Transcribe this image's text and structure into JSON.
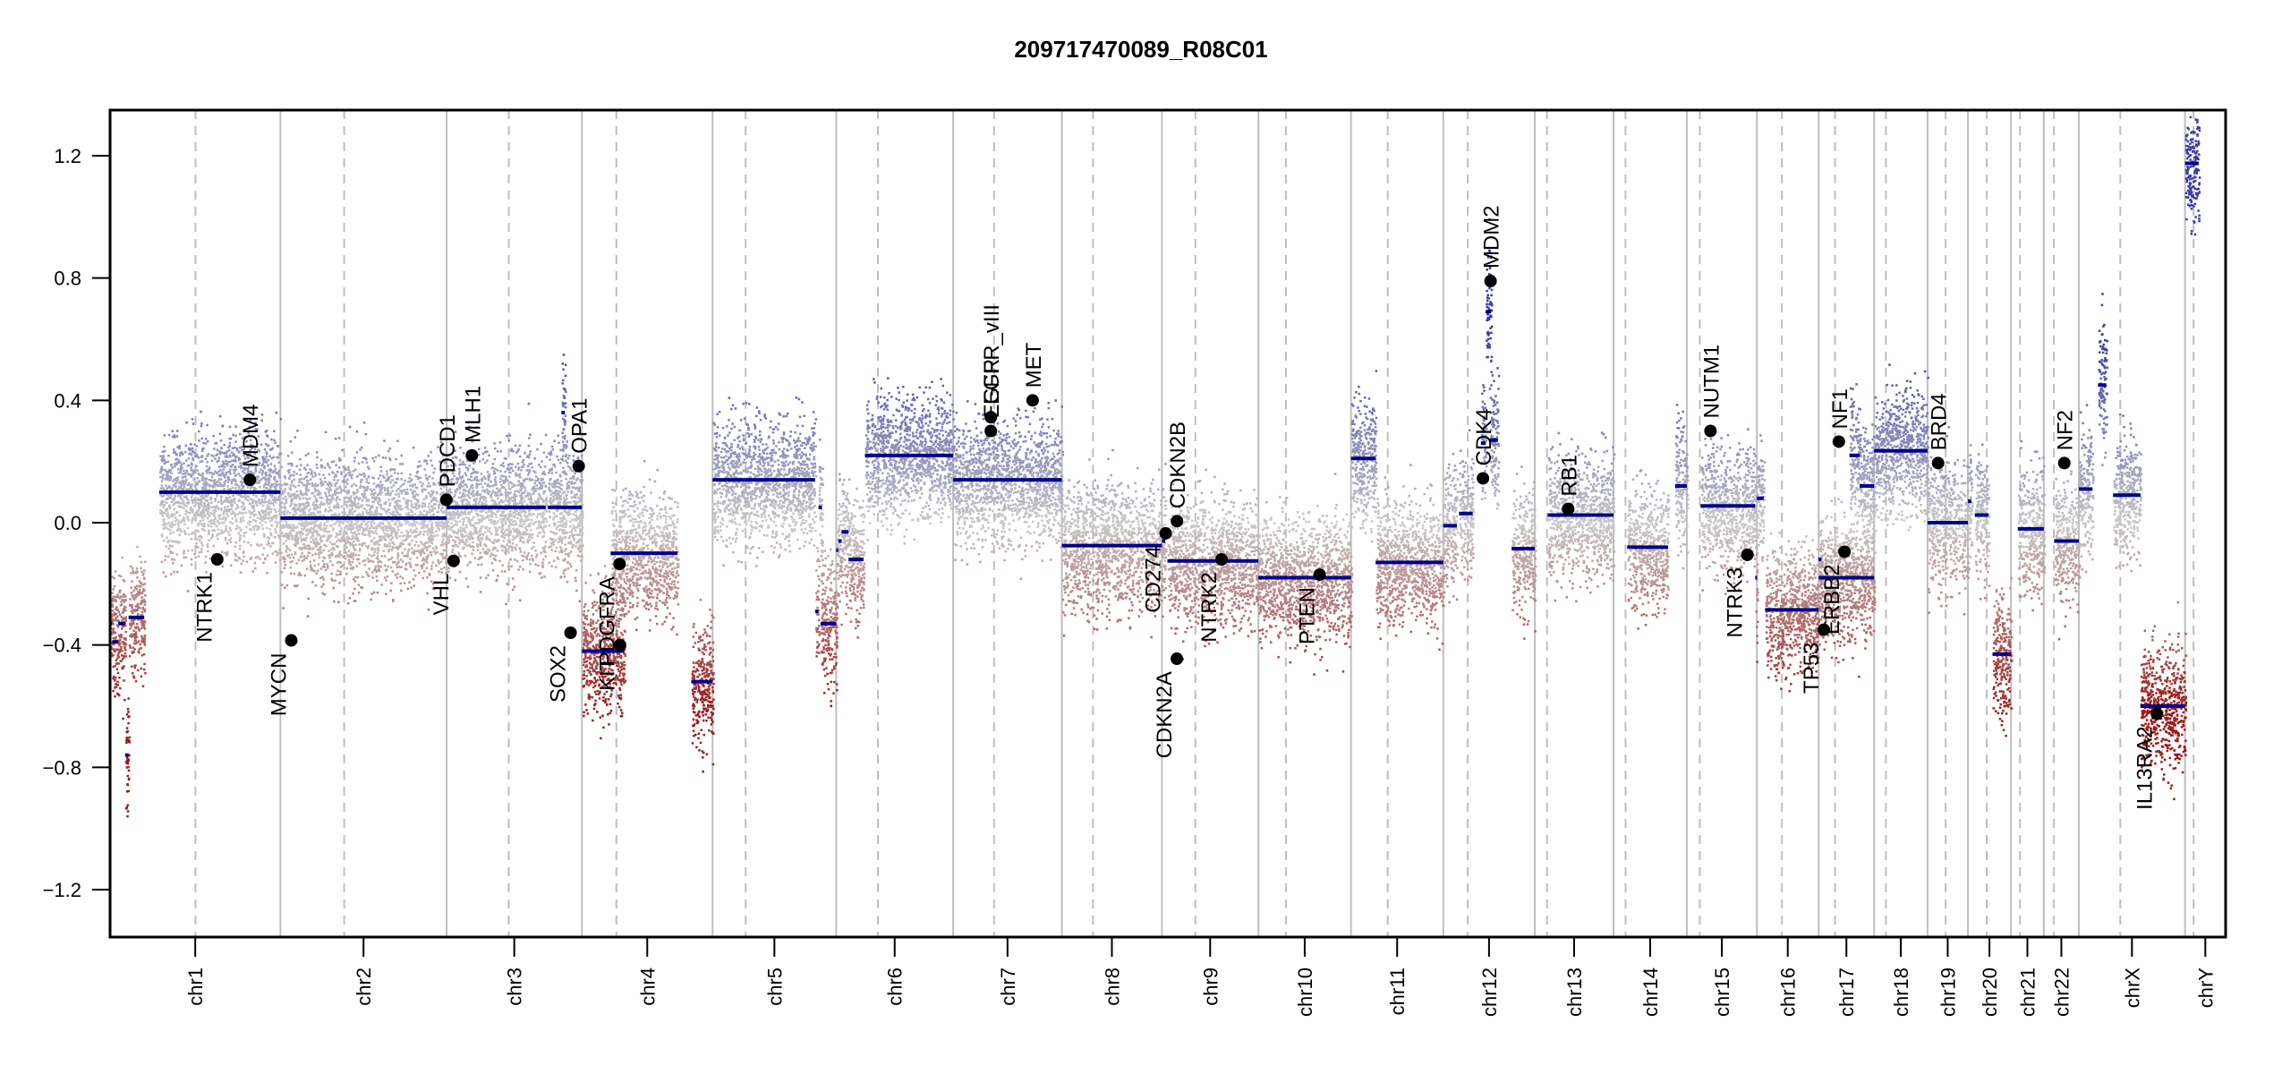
{
  "chart_data": {
    "type": "scatter",
    "title": "209717470089_R08C01",
    "xlabel": "",
    "ylabel": "",
    "ylim": [
      -1.35,
      1.35
    ],
    "yticks": [
      -1.2,
      -0.8,
      -0.4,
      0.0,
      0.4,
      0.8,
      1.2
    ],
    "ytick_labels": [
      "−1.2",
      "−0.8",
      "−0.4",
      "0.0",
      "0.4",
      "0.8",
      "1.2"
    ],
    "grid": false,
    "legend": "none",
    "colors": {
      "gain": "#3b3ba8",
      "loss": "#9b1b1b",
      "neutral": "#c8c8c8",
      "segment": "#00008b",
      "gene": "#000000",
      "boundary": "#bebebe",
      "centromere": "#bebebe"
    },
    "chromosomes": [
      {
        "name": "chr1",
        "length": 249.25,
        "centromere": 125.0
      },
      {
        "name": "chr2",
        "length": 243.2,
        "centromere": 93.3
      },
      {
        "name": "chr3",
        "length": 198.0,
        "centromere": 91.0
      },
      {
        "name": "chr4",
        "length": 191.2,
        "centromere": 50.4
      },
      {
        "name": "chr5",
        "length": 180.9,
        "centromere": 48.4
      },
      {
        "name": "chr6",
        "length": 171.1,
        "centromere": 61.0
      },
      {
        "name": "chr7",
        "length": 159.1,
        "centromere": 59.9
      },
      {
        "name": "chr8",
        "length": 146.4,
        "centromere": 45.6
      },
      {
        "name": "chr9",
        "length": 141.2,
        "centromere": 49.0
      },
      {
        "name": "chr10",
        "length": 135.5,
        "centromere": 40.2
      },
      {
        "name": "chr11",
        "length": 135.0,
        "centromere": 53.7
      },
      {
        "name": "chr12",
        "length": 133.9,
        "centromere": 35.8
      },
      {
        "name": "chr13",
        "length": 115.2,
        "centromere": 17.9
      },
      {
        "name": "chr14",
        "length": 107.3,
        "centromere": 17.6
      },
      {
        "name": "chr15",
        "length": 102.5,
        "centromere": 19.0
      },
      {
        "name": "chr16",
        "length": 90.4,
        "centromere": 36.6
      },
      {
        "name": "chr17",
        "length": 81.2,
        "centromere": 24.0
      },
      {
        "name": "chr18",
        "length": 78.1,
        "centromere": 17.2
      },
      {
        "name": "chr19",
        "length": 59.1,
        "centromere": 26.5
      },
      {
        "name": "chr20",
        "length": 63.0,
        "centromere": 27.5
      },
      {
        "name": "chr21",
        "length": 48.1,
        "centromere": 13.2
      },
      {
        "name": "chr22",
        "length": 51.3,
        "centromere": 14.7
      },
      {
        "name": "chrX",
        "length": 155.3,
        "centromere": 60.6
      },
      {
        "name": "chrY",
        "length": 59.4,
        "centromere": 12.5
      }
    ],
    "segments": [
      {
        "chr": "chr1",
        "start": 0,
        "end": 3,
        "value": -0.33
      },
      {
        "chr": "chr1",
        "start": 3,
        "end": 12,
        "value": -0.39
      },
      {
        "chr": "chr1",
        "start": 12,
        "end": 22,
        "value": -0.33
      },
      {
        "chr": "chr1",
        "start": 22,
        "end": 27,
        "value": -0.76
      },
      {
        "chr": "chr1",
        "start": 27,
        "end": 50,
        "value": -0.31
      },
      {
        "chr": "chr1",
        "start": 72,
        "end": 138,
        "value": 0.1
      },
      {
        "chr": "chr1",
        "start": 138,
        "end": 249.25,
        "value": 0.1
      },
      {
        "chr": "chr2",
        "start": 0,
        "end": 243.2,
        "value": 0.015
      },
      {
        "chr": "chr3",
        "start": 0,
        "end": 145,
        "value": 0.05
      },
      {
        "chr": "chr3",
        "start": 148,
        "end": 198,
        "value": 0.05
      },
      {
        "chr": "chr3",
        "start": 168,
        "end": 173,
        "value": 0.36
      },
      {
        "chr": "chr4",
        "start": 0,
        "end": 28,
        "value": -0.42
      },
      {
        "chr": "chr4",
        "start": 28,
        "end": 62,
        "value": -0.42
      },
      {
        "chr": "chr4",
        "start": 42,
        "end": 140,
        "value": -0.1
      },
      {
        "chr": "chr4",
        "start": 160,
        "end": 191.2,
        "value": -0.52
      },
      {
        "chr": "chr5",
        "start": 0,
        "end": 150,
        "value": 0.14
      },
      {
        "chr": "chr5",
        "start": 155,
        "end": 160,
        "value": 0.05
      },
      {
        "chr": "chr5",
        "start": 150,
        "end": 155,
        "value": -0.29
      },
      {
        "chr": "chr5",
        "start": 158,
        "end": 180.9,
        "value": -0.33
      },
      {
        "chr": "chr6",
        "start": 0,
        "end": 3,
        "value": -0.09
      },
      {
        "chr": "chr6",
        "start": 3,
        "end": 8,
        "value": -0.06
      },
      {
        "chr": "chr6",
        "start": 8,
        "end": 18,
        "value": -0.03
      },
      {
        "chr": "chr6",
        "start": 18,
        "end": 40,
        "value": -0.12
      },
      {
        "chr": "chr6",
        "start": 42,
        "end": 171.1,
        "value": 0.22
      },
      {
        "chr": "chr7",
        "start": 0,
        "end": 159.1,
        "value": 0.14
      },
      {
        "chr": "chr8",
        "start": 0,
        "end": 146.4,
        "value": -0.075
      },
      {
        "chr": "chr9",
        "start": 0,
        "end": 5,
        "value": -0.06
      },
      {
        "chr": "chr9",
        "start": 8,
        "end": 141.2,
        "value": -0.125
      },
      {
        "chr": "chr10",
        "start": 0,
        "end": 135.5,
        "value": -0.18
      },
      {
        "chr": "chr11",
        "start": 0,
        "end": 36,
        "value": 0.21
      },
      {
        "chr": "chr11",
        "start": 36,
        "end": 135.0,
        "value": -0.13
      },
      {
        "chr": "chr12",
        "start": 0,
        "end": 20,
        "value": -0.01
      },
      {
        "chr": "chr12",
        "start": 23,
        "end": 43,
        "value": 0.03
      },
      {
        "chr": "chr12",
        "start": 55,
        "end": 62,
        "value": 0.26
      },
      {
        "chr": "chr12",
        "start": 62,
        "end": 70,
        "value": 0.69
      },
      {
        "chr": "chr12",
        "start": 68,
        "end": 80,
        "value": 0.27
      },
      {
        "chr": "chr12",
        "start": 100,
        "end": 133.9,
        "value": -0.085
      },
      {
        "chr": "chr13",
        "start": 19,
        "end": 115.2,
        "value": 0.025
      },
      {
        "chr": "chr14",
        "start": 20,
        "end": 80,
        "value": -0.08
      },
      {
        "chr": "chr14",
        "start": 90,
        "end": 107.3,
        "value": 0.12
      },
      {
        "chr": "chr15",
        "start": 20,
        "end": 100,
        "value": 0.055
      },
      {
        "chr": "chr15",
        "start": 100,
        "end": 102.5,
        "value": -0.18
      },
      {
        "chr": "chr16",
        "start": 0,
        "end": 10,
        "value": 0.08
      },
      {
        "chr": "chr16",
        "start": 12,
        "end": 90.4,
        "value": -0.285
      },
      {
        "chr": "chr17",
        "start": 0,
        "end": 20,
        "value": -0.18
      },
      {
        "chr": "chr17",
        "start": 20,
        "end": 81.2,
        "value": -0.18
      },
      {
        "chr": "chr17",
        "start": 0,
        "end": 4,
        "value": -0.12
      },
      {
        "chr": "chr17",
        "start": 45,
        "end": 60,
        "value": 0.22
      },
      {
        "chr": "chr17",
        "start": 60,
        "end": 81.2,
        "value": 0.12
      },
      {
        "chr": "chr18",
        "start": 0,
        "end": 78.1,
        "value": 0.235
      },
      {
        "chr": "chr19",
        "start": 0,
        "end": 59.1,
        "value": 0.0
      },
      {
        "chr": "chr20",
        "start": 0,
        "end": 5,
        "value": 0.07
      },
      {
        "chr": "chr20",
        "start": 10,
        "end": 30,
        "value": 0.025
      },
      {
        "chr": "chr20",
        "start": 36,
        "end": 63.0,
        "value": -0.43
      },
      {
        "chr": "chr21",
        "start": 10,
        "end": 48.1,
        "value": -0.02
      },
      {
        "chr": "chr22",
        "start": 15,
        "end": 51.3,
        "value": -0.06
      },
      {
        "chr": "chrX",
        "start": 0,
        "end": 20,
        "value": 0.11
      },
      {
        "chr": "chrX",
        "start": 28,
        "end": 40,
        "value": 0.45
      },
      {
        "chr": "chrX",
        "start": 50,
        "end": 90,
        "value": 0.09
      },
      {
        "chr": "chrX",
        "start": 90,
        "end": 155.3,
        "value": -0.6
      },
      {
        "chr": "chrY",
        "start": 0,
        "end": 20,
        "value": 1.175
      }
    ],
    "genes": [
      {
        "name": "NTRK1",
        "chr": "chr1",
        "pos": 156.8,
        "value": -0.12,
        "label_side": "below"
      },
      {
        "name": "MDM4",
        "chr": "chr1",
        "pos": 204.5,
        "value": 0.14,
        "label_side": "above"
      },
      {
        "name": "MYCN",
        "chr": "chr2",
        "pos": 15.9,
        "value": -0.385,
        "label_side": "below"
      },
      {
        "name": "PDCD1",
        "chr": "chr2",
        "pos": 242.8,
        "value": 0.075,
        "label_side": "above"
      },
      {
        "name": "VHL",
        "chr": "chr3",
        "pos": 10.2,
        "value": -0.125,
        "label_side": "below"
      },
      {
        "name": "MLH1",
        "chr": "chr3",
        "pos": 37.0,
        "value": 0.22,
        "label_side": "above"
      },
      {
        "name": "SOX2",
        "chr": "chr3",
        "pos": 181.4,
        "value": -0.36,
        "label_side": "below"
      },
      {
        "name": "OPA1",
        "chr": "chr3",
        "pos": 193.3,
        "value": 0.185,
        "label_side": "above"
      },
      {
        "name": "KIT",
        "chr": "chr4",
        "pos": 55.5,
        "value": -0.4,
        "label_side": "below"
      },
      {
        "name": "PDGFRA",
        "chr": "chr4",
        "pos": 55.1,
        "value": -0.135,
        "label_side": "below"
      },
      {
        "name": "EGFR",
        "chr": "chr7",
        "pos": 55.1,
        "value": 0.3,
        "label_side": "above"
      },
      {
        "name": "EGFR_vIII",
        "chr": "chr7",
        "pos": 55.2,
        "value": 0.345,
        "label_side": "above"
      },
      {
        "name": "MET",
        "chr": "chr7",
        "pos": 116.3,
        "value": 0.4,
        "label_side": "above"
      },
      {
        "name": "CD274",
        "chr": "chr9",
        "pos": 5.5,
        "value": -0.035,
        "label_side": "below"
      },
      {
        "name": "CDKN2A",
        "chr": "chr9",
        "pos": 21.9,
        "value": -0.445,
        "label_side": "below"
      },
      {
        "name": "CDKN2B",
        "chr": "chr9",
        "pos": 22.0,
        "value": 0.005,
        "label_side": "above"
      },
      {
        "name": "NTRK2",
        "chr": "chr9",
        "pos": 87.3,
        "value": -0.12,
        "label_side": "below"
      },
      {
        "name": "PTEN",
        "chr": "chr10",
        "pos": 89.6,
        "value": -0.17,
        "label_side": "below"
      },
      {
        "name": "CDK4",
        "chr": "chr12",
        "pos": 58.1,
        "value": 0.145,
        "label_side": "above"
      },
      {
        "name": "MDM2",
        "chr": "chr12",
        "pos": 69.2,
        "value": 0.79,
        "label_side": "above"
      },
      {
        "name": "RB1",
        "chr": "chr13",
        "pos": 48.9,
        "value": 0.045,
        "label_side": "above"
      },
      {
        "name": "NUTM1",
        "chr": "chr15",
        "pos": 34.6,
        "value": 0.3,
        "label_side": "above"
      },
      {
        "name": "NTRK3",
        "chr": "chr15",
        "pos": 88.5,
        "value": -0.105,
        "label_side": "below"
      },
      {
        "name": "TP53",
        "chr": "chr17",
        "pos": 7.6,
        "value": -0.35,
        "label_side": "below"
      },
      {
        "name": "NF1",
        "chr": "chr17",
        "pos": 29.5,
        "value": 0.265,
        "label_side": "above"
      },
      {
        "name": "ERBB2",
        "chr": "chr17",
        "pos": 37.8,
        "value": -0.095,
        "label_side": "below"
      },
      {
        "name": "BRD4",
        "chr": "chr19",
        "pos": 15.4,
        "value": 0.195,
        "label_side": "above"
      },
      {
        "name": "NF2",
        "chr": "chr22",
        "pos": 29.9,
        "value": 0.195,
        "label_side": "above"
      },
      {
        "name": "IL13RA2",
        "chr": "chrX",
        "pos": 114.2,
        "value": -0.625,
        "label_side": "below"
      }
    ]
  }
}
